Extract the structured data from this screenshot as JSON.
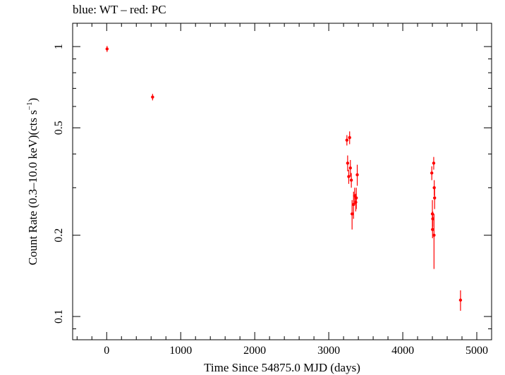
{
  "chart_data": {
    "type": "scatter",
    "title": "blue: WT – red: PC",
    "xlabel": "Time Since 54875.0 MJD (days)",
    "ylabel": "Count Rate (0.3–10.0 keV)(cts s",
    "ylabel_sup": "−1",
    "ylabel_end": ")",
    "xlim": [
      -460,
      5200
    ],
    "ylim": [
      0.082,
      1.22
    ],
    "yscale": "log",
    "x_ticks": [
      0,
      1000,
      2000,
      3000,
      4000,
      5000
    ],
    "x_tick_labels": [
      "0",
      "1000",
      "2000",
      "3000",
      "4000",
      "5000"
    ],
    "y_ticks": [
      0.1,
      0.2,
      0.5,
      1
    ],
    "y_tick_labels": [
      "0.1",
      "0.2",
      "0.5",
      "1"
    ],
    "grid": false,
    "colors": {
      "pc": "#ff0000",
      "axis": "#000000"
    },
    "series": [
      {
        "name": "PC",
        "color": "#ff0000",
        "points": [
          {
            "x": 5,
            "y": 0.98,
            "ylo": 0.955,
            "yhi": 1.005
          },
          {
            "x": 620,
            "y": 0.65,
            "ylo": 0.632,
            "yhi": 0.668
          },
          {
            "x": 3245,
            "y": 0.45,
            "ylo": 0.43,
            "yhi": 0.47
          },
          {
            "x": 3282,
            "y": 0.46,
            "ylo": 0.435,
            "yhi": 0.485
          },
          {
            "x": 3255,
            "y": 0.37,
            "ylo": 0.345,
            "yhi": 0.395
          },
          {
            "x": 3292,
            "y": 0.355,
            "ylo": 0.33,
            "yhi": 0.38
          },
          {
            "x": 3270,
            "y": 0.33,
            "ylo": 0.31,
            "yhi": 0.35
          },
          {
            "x": 3305,
            "y": 0.32,
            "ylo": 0.3,
            "yhi": 0.34
          },
          {
            "x": 3350,
            "y": 0.28,
            "ylo": 0.26,
            "yhi": 0.3
          },
          {
            "x": 3335,
            "y": 0.26,
            "ylo": 0.23,
            "yhi": 0.29
          },
          {
            "x": 3365,
            "y": 0.265,
            "ylo": 0.245,
            "yhi": 0.285
          },
          {
            "x": 3372,
            "y": 0.275,
            "ylo": 0.25,
            "yhi": 0.3
          },
          {
            "x": 3315,
            "y": 0.24,
            "ylo": 0.21,
            "yhi": 0.27
          },
          {
            "x": 3385,
            "y": 0.335,
            "ylo": 0.305,
            "yhi": 0.365
          },
          {
            "x": 4392,
            "y": 0.34,
            "ylo": 0.32,
            "yhi": 0.36
          },
          {
            "x": 4418,
            "y": 0.37,
            "ylo": 0.35,
            "yhi": 0.39
          },
          {
            "x": 4425,
            "y": 0.3,
            "ylo": 0.28,
            "yhi": 0.32
          },
          {
            "x": 4430,
            "y": 0.275,
            "ylo": 0.25,
            "yhi": 0.3
          },
          {
            "x": 4400,
            "y": 0.24,
            "ylo": 0.21,
            "yhi": 0.27
          },
          {
            "x": 4405,
            "y": 0.23,
            "ylo": 0.215,
            "yhi": 0.245
          },
          {
            "x": 4402,
            "y": 0.21,
            "ylo": 0.195,
            "yhi": 0.225
          },
          {
            "x": 4422,
            "y": 0.2,
            "ylo": 0.15,
            "yhi": 0.24
          },
          {
            "x": 4780,
            "y": 0.115,
            "ylo": 0.105,
            "yhi": 0.125
          }
        ]
      }
    ]
  }
}
